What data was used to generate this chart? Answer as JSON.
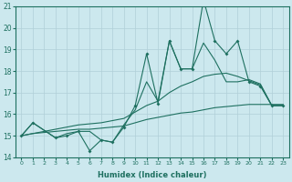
{
  "xlabel": "Humidex (Indice chaleur)",
  "xlim": [
    -0.5,
    23.5
  ],
  "ylim": [
    14,
    21
  ],
  "yticks": [
    14,
    15,
    16,
    17,
    18,
    19,
    20,
    21
  ],
  "xticks": [
    0,
    1,
    2,
    3,
    4,
    5,
    6,
    7,
    8,
    9,
    10,
    11,
    12,
    13,
    14,
    15,
    16,
    17,
    18,
    19,
    20,
    21,
    22,
    23
  ],
  "bg_color": "#cce8ee",
  "line_color": "#1e7060",
  "grid_color": "#b0cfd8",
  "series1_x": [
    0,
    1,
    3,
    4,
    5,
    6,
    7,
    8,
    9,
    10,
    11,
    12,
    13,
    14,
    15,
    16,
    17,
    18,
    19,
    20,
    21,
    22,
    23
  ],
  "series1_y": [
    15.0,
    15.6,
    14.9,
    15.0,
    15.2,
    14.3,
    14.8,
    14.7,
    15.4,
    16.4,
    18.8,
    16.5,
    19.4,
    18.1,
    18.1,
    21.3,
    19.4,
    18.8,
    19.4,
    17.5,
    17.3,
    16.4,
    16.4
  ],
  "series2_x": [
    0,
    1,
    2,
    3,
    4,
    5,
    6,
    7,
    8,
    9,
    10,
    11,
    12,
    13,
    14,
    15,
    16,
    17,
    18,
    19,
    20,
    21,
    22,
    23
  ],
  "series2_y": [
    15.0,
    15.1,
    15.15,
    15.2,
    15.25,
    15.3,
    15.3,
    15.35,
    15.4,
    15.45,
    15.6,
    15.75,
    15.85,
    15.95,
    16.05,
    16.1,
    16.2,
    16.3,
    16.35,
    16.4,
    16.45,
    16.45,
    16.45,
    16.45
  ],
  "series3_x": [
    0,
    1,
    3,
    4,
    5,
    6,
    7,
    8,
    9,
    10,
    11,
    12,
    13,
    14,
    15,
    16,
    17,
    18,
    19,
    20,
    21,
    22,
    23
  ],
  "series3_y": [
    15.0,
    15.6,
    14.9,
    15.1,
    15.2,
    15.2,
    14.8,
    14.7,
    15.5,
    16.2,
    17.5,
    16.6,
    19.4,
    18.1,
    18.1,
    19.3,
    18.5,
    17.5,
    17.5,
    17.6,
    17.4,
    16.4,
    16.4
  ],
  "series4_x": [
    0,
    1,
    2,
    3,
    4,
    5,
    6,
    7,
    8,
    9,
    10,
    11,
    12,
    13,
    14,
    15,
    16,
    17,
    18,
    19,
    20,
    21,
    22,
    23
  ],
  "series4_y": [
    15.0,
    15.1,
    15.2,
    15.3,
    15.4,
    15.5,
    15.55,
    15.6,
    15.7,
    15.8,
    16.1,
    16.4,
    16.6,
    17.0,
    17.3,
    17.5,
    17.75,
    17.85,
    17.9,
    17.75,
    17.55,
    17.35,
    16.4,
    16.4
  ]
}
